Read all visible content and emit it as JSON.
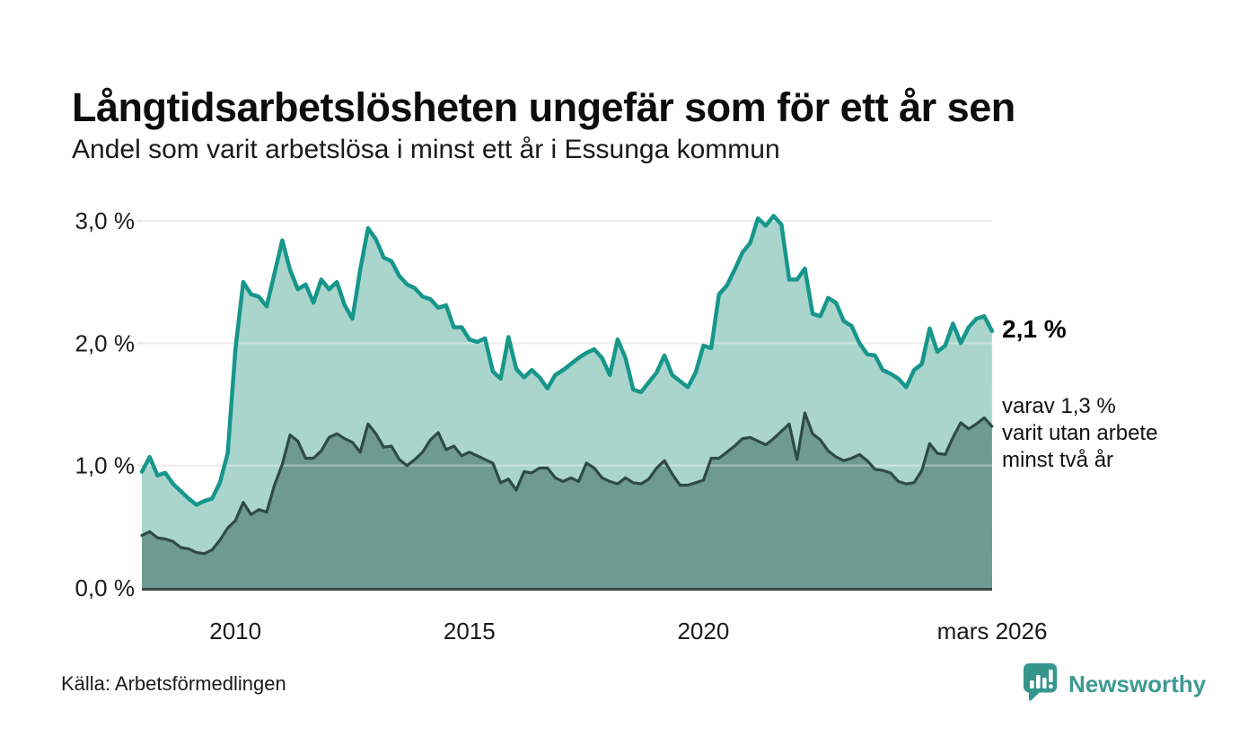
{
  "title": "Långtidsarbetslösheten ungefär som för ett år sen",
  "subtitle": "Andel som varit arbetslösa i minst ett år i Essunga kommun",
  "source": "Källa: Arbetsförmedlingen",
  "branding": {
    "name": "Newsworthy",
    "color": "#3d9a93",
    "icon": "newsworthy-speech-bubble-bars-icon",
    "icon_color": "#35968e"
  },
  "end_labels": {
    "primary": "2,1 %",
    "secondary_line1": "varav 1,3 %",
    "secondary_line2": "varit utan arbete",
    "secondary_line3": "minst två år"
  },
  "chart_data": {
    "type": "area",
    "title": "Långtidsarbetslösheten ungefär som för ett år sen",
    "subtitle": "Andel som varit arbetslösa i minst ett år i Essunga kommun",
    "x_unit": "decimal-year, monthly-sampled (2-month step)",
    "x_start": 2008.0,
    "x_step": 0.16667,
    "xlim": [
      2008.0,
      2026.17
    ],
    "ylim": [
      0,
      3.1
    ],
    "grid": "horizontal",
    "legend": "none (direct end labels)",
    "colors": {
      "grid": "#e3e3e3",
      "axis": "#3b4a48",
      "text": "#1a1a1a"
    },
    "yticks": [
      {
        "v": 0,
        "label": "0,0 %"
      },
      {
        "v": 1,
        "label": "1,0 %"
      },
      {
        "v": 2,
        "label": "2,0 %"
      },
      {
        "v": 3,
        "label": "3,0 %"
      }
    ],
    "xticks": [
      {
        "v": 2010,
        "label": "2010"
      },
      {
        "v": 2015,
        "label": "2015"
      },
      {
        "v": 2020,
        "label": "2020"
      },
      {
        "v": 2026.17,
        "label": "mars 2026"
      }
    ],
    "series": [
      {
        "name": "Andel som varit arbetslösa i minst ett år",
        "line_color": "#17968b",
        "fill_color": "#a9d5cd",
        "end_value_label": "2,1 %",
        "values": [
          0.95,
          1.07,
          0.92,
          0.94,
          0.85,
          0.79,
          0.73,
          0.68,
          0.71,
          0.73,
          0.86,
          1.1,
          1.95,
          2.5,
          2.4,
          2.38,
          2.3,
          2.57,
          2.84,
          2.6,
          2.44,
          2.48,
          2.33,
          2.52,
          2.44,
          2.5,
          2.31,
          2.2,
          2.6,
          2.94,
          2.85,
          2.7,
          2.67,
          2.55,
          2.48,
          2.45,
          2.38,
          2.36,
          2.29,
          2.31,
          2.13,
          2.13,
          2.03,
          2.01,
          2.04,
          1.77,
          1.71,
          2.05,
          1.79,
          1.72,
          1.78,
          1.72,
          1.63,
          1.74,
          1.78,
          1.83,
          1.88,
          1.92,
          1.95,
          1.88,
          1.74,
          2.03,
          1.88,
          1.62,
          1.6,
          1.68,
          1.76,
          1.9,
          1.74,
          1.69,
          1.64,
          1.76,
          1.98,
          1.96,
          2.4,
          2.47,
          2.6,
          2.74,
          2.82,
          3.02,
          2.96,
          3.04,
          2.97,
          2.52,
          2.52,
          2.61,
          2.24,
          2.22,
          2.37,
          2.33,
          2.18,
          2.14,
          2.0,
          1.91,
          1.9,
          1.78,
          1.75,
          1.71,
          1.64,
          1.78,
          1.83,
          2.12,
          1.93,
          1.98,
          2.16,
          2.0,
          2.13,
          2.2,
          2.22,
          2.1
        ]
      },
      {
        "name": "varav utan arbete minst två år",
        "line_color": "#2e4a47",
        "fill_color": "#6f9a93",
        "end_value_label": "1,3 %",
        "values": [
          0.43,
          0.46,
          0.41,
          0.4,
          0.38,
          0.33,
          0.32,
          0.29,
          0.28,
          0.31,
          0.39,
          0.49,
          0.55,
          0.7,
          0.6,
          0.64,
          0.62,
          0.84,
          1.01,
          1.25,
          1.2,
          1.06,
          1.06,
          1.12,
          1.23,
          1.26,
          1.22,
          1.19,
          1.11,
          1.34,
          1.26,
          1.15,
          1.16,
          1.05,
          1.0,
          1.05,
          1.11,
          1.21,
          1.27,
          1.13,
          1.16,
          1.08,
          1.11,
          1.08,
          1.05,
          1.02,
          0.86,
          0.89,
          0.8,
          0.95,
          0.94,
          0.98,
          0.98,
          0.9,
          0.87,
          0.9,
          0.87,
          1.02,
          0.98,
          0.9,
          0.87,
          0.85,
          0.9,
          0.86,
          0.85,
          0.89,
          0.98,
          1.04,
          0.93,
          0.84,
          0.84,
          0.86,
          0.88,
          1.06,
          1.06,
          1.11,
          1.16,
          1.22,
          1.23,
          1.2,
          1.17,
          1.22,
          1.28,
          1.34,
          1.05,
          1.43,
          1.26,
          1.21,
          1.12,
          1.07,
          1.04,
          1.06,
          1.09,
          1.04,
          0.97,
          0.96,
          0.94,
          0.87,
          0.85,
          0.86,
          0.96,
          1.18,
          1.1,
          1.09,
          1.23,
          1.35,
          1.3,
          1.34,
          1.39,
          1.32
        ]
      }
    ]
  }
}
